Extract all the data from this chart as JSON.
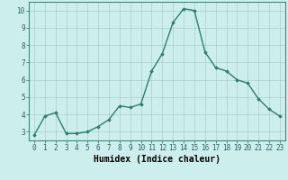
{
  "x": [
    0,
    1,
    2,
    3,
    4,
    5,
    6,
    7,
    8,
    9,
    10,
    11,
    12,
    13,
    14,
    15,
    16,
    17,
    18,
    19,
    20,
    21,
    22,
    23
  ],
  "y": [
    2.8,
    3.9,
    4.1,
    2.9,
    2.9,
    3.0,
    3.3,
    3.7,
    4.5,
    4.4,
    4.6,
    6.5,
    7.5,
    9.3,
    10.1,
    10.0,
    7.6,
    6.7,
    6.5,
    6.0,
    5.8,
    4.9,
    4.3,
    3.9
  ],
  "line_color": "#2e7d6e",
  "marker": "D",
  "marker_size": 1.8,
  "bg_color": "#cceeed",
  "grid_color": "#aacfcf",
  "xlabel": "Humidex (Indice chaleur)",
  "xlabel_fontsize": 7,
  "xlim": [
    -0.5,
    23.5
  ],
  "ylim": [
    2.5,
    10.5
  ],
  "yticks": [
    3,
    4,
    5,
    6,
    7,
    8,
    9,
    10
  ],
  "xticks": [
    0,
    1,
    2,
    3,
    4,
    5,
    6,
    7,
    8,
    9,
    10,
    11,
    12,
    13,
    14,
    15,
    16,
    17,
    18,
    19,
    20,
    21,
    22,
    23
  ],
  "tick_fontsize": 5.5,
  "line_width": 1.0
}
